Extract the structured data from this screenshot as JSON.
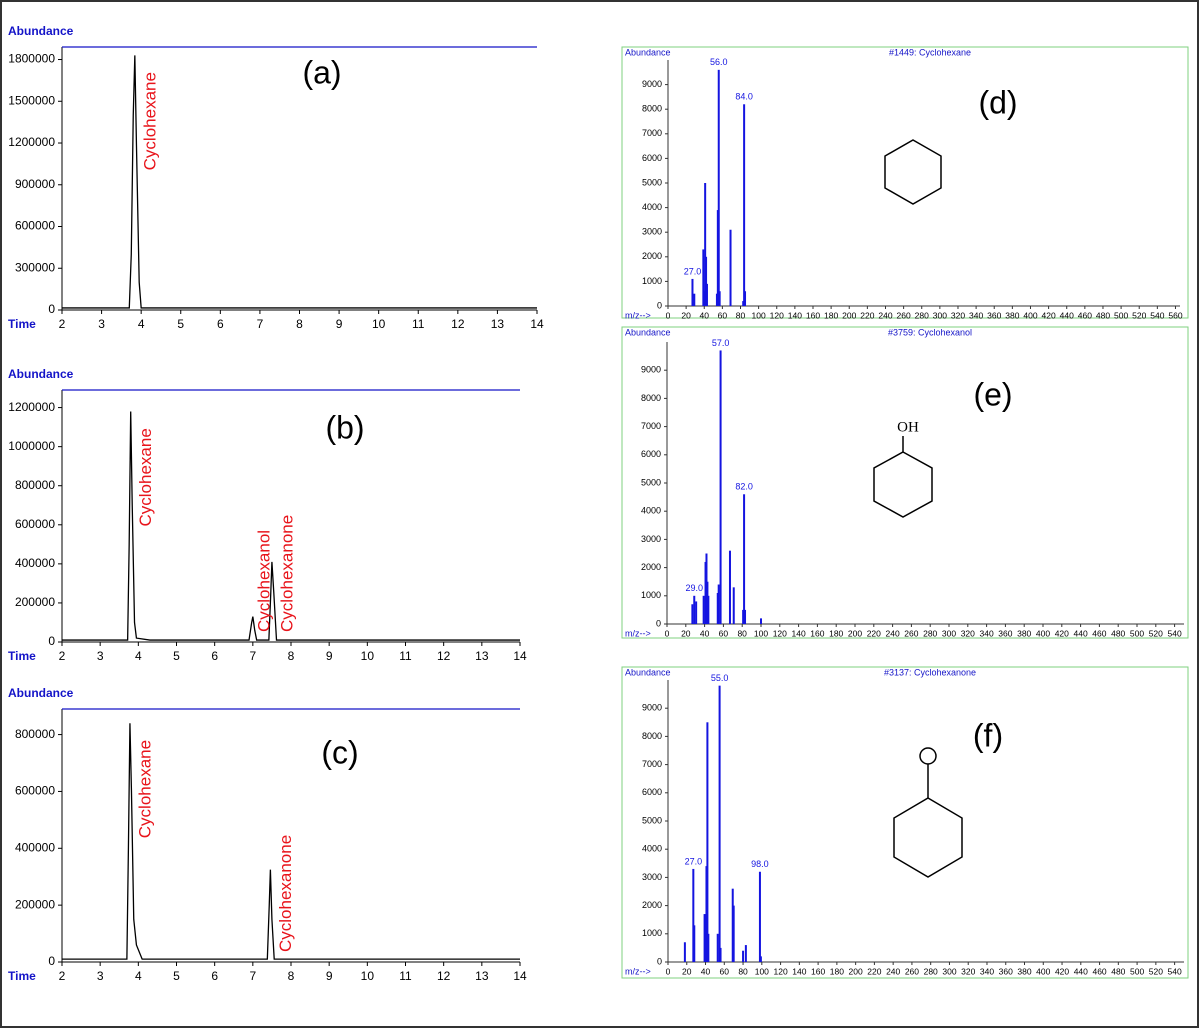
{
  "chart_data": [
    {
      "type": "line",
      "label": "(a)",
      "y_label": "Abundance",
      "x_label": "Time",
      "xlim": [
        2,
        14
      ],
      "xticks": [
        2,
        3,
        4,
        5,
        6,
        7,
        8,
        9,
        10,
        11,
        12,
        13,
        14
      ],
      "ylim": [
        0,
        1890000
      ],
      "yticks": [
        0,
        300000,
        600000,
        900000,
        1200000,
        1500000,
        1800000
      ],
      "x": [
        2,
        3.7,
        3.75,
        3.8,
        3.84,
        3.88,
        3.95,
        4.0,
        14
      ],
      "series": [
        {
          "color": "#000000",
          "values": [
            15000,
            15000,
            400000,
            1400000,
            1830000,
            1200000,
            200000,
            15000,
            15000
          ]
        }
      ],
      "annotations": [
        {
          "text": "Cyclohexane",
          "x": 3.84
        }
      ],
      "annotation_color": "#e8141b"
    },
    {
      "type": "line",
      "label": "(b)",
      "y_label": "Abundance",
      "x_label": "Time",
      "xlim": [
        2,
        14
      ],
      "xticks": [
        2,
        3,
        4,
        5,
        6,
        7,
        8,
        9,
        10,
        11,
        12,
        13,
        14
      ],
      "ylim": [
        0,
        1290000
      ],
      "yticks": [
        0,
        200000,
        400000,
        600000,
        800000,
        1000000,
        1200000
      ],
      "x": [
        2,
        3.72,
        3.76,
        3.8,
        3.84,
        3.9,
        3.95,
        4.3,
        6.9,
        6.97,
        7.0,
        7.05,
        7.1,
        7.42,
        7.47,
        7.5,
        7.55,
        7.62,
        14
      ],
      "series": [
        {
          "color": "#000000",
          "values": [
            10000,
            10000,
            500000,
            1180000,
            700000,
            100000,
            20000,
            10000,
            10000,
            100000,
            130000,
            60000,
            10000,
            10000,
            250000,
            410000,
            250000,
            10000,
            10000
          ]
        }
      ],
      "annotations": [
        {
          "text": "Cyclohexane",
          "x": 3.8
        },
        {
          "text": "Cyclohexanol",
          "x": 6.9
        },
        {
          "text": "Cyclohexanone",
          "x": 7.5
        }
      ],
      "annotation_color": "#e8141b"
    },
    {
      "type": "line",
      "label": "(c)",
      "y_label": "Abundance",
      "x_label": "Time",
      "xlim": [
        2,
        14
      ],
      "xticks": [
        2,
        3,
        4,
        5,
        6,
        7,
        8,
        9,
        10,
        11,
        12,
        13,
        14
      ],
      "ylim": [
        0,
        890000
      ],
      "yticks": [
        0,
        200000,
        400000,
        600000,
        800000
      ],
      "x": [
        2,
        3.7,
        3.74,
        3.78,
        3.82,
        3.88,
        3.95,
        4.1,
        7.38,
        7.43,
        7.46,
        7.5,
        7.56,
        14
      ],
      "series": [
        {
          "color": "#000000",
          "values": [
            10000,
            10000,
            400000,
            840000,
            600000,
            150000,
            60000,
            10000,
            10000,
            200000,
            325000,
            150000,
            10000,
            10000
          ]
        }
      ],
      "annotations": [
        {
          "text": "Cyclohexane",
          "x": 3.78
        },
        {
          "text": "Cyclohexanone",
          "x": 7.46
        }
      ],
      "annotation_color": "#e8141b"
    },
    {
      "type": "stem",
      "label": "(d)",
      "title": "#1449: Cyclohexane",
      "y_label": "Abundance",
      "x_label": "m/z-->",
      "color": "#1414e0",
      "xlim": [
        0,
        565
      ],
      "xticks": [
        0,
        20,
        40,
        60,
        80,
        100,
        120,
        140,
        160,
        180,
        200,
        220,
        240,
        260,
        280,
        300,
        320,
        340,
        360,
        380,
        400,
        420,
        440,
        460,
        480,
        500,
        520,
        540,
        560
      ],
      "ylim": [
        0,
        10000
      ],
      "yticks": [
        0,
        1000,
        2000,
        3000,
        4000,
        5000,
        6000,
        7000,
        8000,
        9000
      ],
      "x": [
        27,
        29,
        39,
        40,
        41,
        42,
        43,
        54,
        55,
        56,
        57,
        69,
        83,
        84,
        85
      ],
      "values": [
        1100,
        500,
        2300,
        600,
        5000,
        2000,
        900,
        500,
        3900,
        9600,
        600,
        3100,
        200,
        8200,
        600
      ],
      "annotations": [
        {
          "value": 27,
          "label": "27.0"
        },
        {
          "value": 56,
          "label": "56.0"
        },
        {
          "value": 84,
          "label": "84.0"
        }
      ]
    },
    {
      "type": "stem",
      "label": "(e)",
      "title": "#3759: Cyclohexanol",
      "y_label": "Abundance",
      "x_label": "m/z-->",
      "color": "#1414e0",
      "structure_label": "OH",
      "xlim": [
        0,
        550
      ],
      "xticks": [
        0,
        20,
        40,
        60,
        80,
        100,
        120,
        140,
        160,
        180,
        200,
        220,
        240,
        260,
        280,
        300,
        320,
        340,
        360,
        380,
        400,
        420,
        440,
        460,
        480,
        500,
        520,
        540
      ],
      "ylim": [
        0,
        10000
      ],
      "yticks": [
        0,
        1000,
        2000,
        3000,
        4000,
        5000,
        6000,
        7000,
        8000,
        9000
      ],
      "x": [
        27,
        29,
        31,
        39,
        41,
        42,
        43,
        44,
        54,
        55,
        57,
        67,
        71,
        81,
        82,
        83,
        100
      ],
      "values": [
        700,
        1000,
        800,
        1000,
        2200,
        2500,
        1500,
        1000,
        1100,
        1400,
        9700,
        2600,
        1300,
        500,
        4600,
        500,
        200
      ],
      "annotations": [
        {
          "value": 29,
          "label": "29.0"
        },
        {
          "value": 57,
          "label": "57.0"
        },
        {
          "value": 82,
          "label": "82.0"
        }
      ]
    },
    {
      "type": "stem",
      "label": "(f)",
      "title": "#3137: Cyclohexanone",
      "y_label": "Abundance",
      "x_label": "m/z-->",
      "color": "#1414e0",
      "xlim": [
        0,
        550
      ],
      "xticks": [
        0,
        20,
        40,
        60,
        80,
        100,
        120,
        140,
        160,
        180,
        200,
        220,
        240,
        260,
        280,
        300,
        320,
        340,
        360,
        380,
        400,
        420,
        440,
        460,
        480,
        500,
        520,
        540
      ],
      "ylim": [
        0,
        10000
      ],
      "yticks": [
        0,
        1000,
        2000,
        3000,
        4000,
        5000,
        6000,
        7000,
        8000,
        9000
      ],
      "x": [
        18,
        27,
        28,
        39,
        41,
        42,
        43,
        53,
        55,
        56,
        69,
        70,
        80,
        83,
        98,
        99
      ],
      "values": [
        700,
        3300,
        1300,
        1700,
        3400,
        8500,
        1000,
        1000,
        9800,
        500,
        2600,
        2000,
        400,
        600,
        3200,
        200
      ],
      "annotations": [
        {
          "value": 27,
          "label": "27.0"
        },
        {
          "value": 55,
          "label": "55.0"
        },
        {
          "value": 98,
          "label": "98.0"
        }
      ]
    }
  ]
}
